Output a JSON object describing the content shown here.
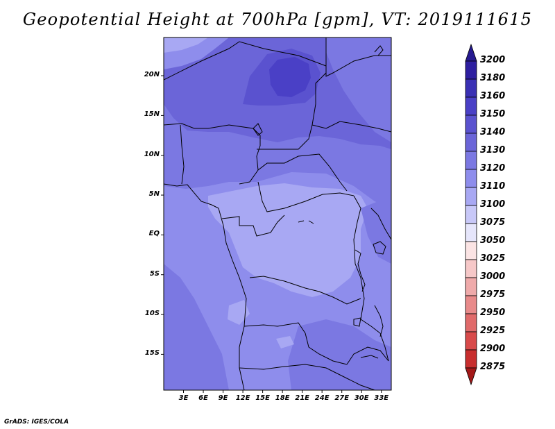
{
  "title": "Geopotential Height at 700hPa [gpm], VT: 2019111615",
  "credit": "GrADS: IGES/COLA",
  "map": {
    "lat_labels": [
      "20N",
      "15N",
      "10N",
      "5N",
      "EQ",
      "5S",
      "10S",
      "15S"
    ],
    "lon_labels": [
      "3E",
      "6E",
      "9E",
      "12E",
      "15E",
      "18E",
      "21E",
      "24E",
      "27E",
      "30E",
      "33E"
    ],
    "lat_values": [
      20,
      15,
      10,
      5,
      0,
      -5,
      -10,
      -15
    ],
    "lon_values": [
      3,
      6,
      9,
      12,
      15,
      18,
      21,
      24,
      27,
      30,
      33
    ],
    "extent": {
      "lon_min": 0,
      "lon_max": 34.5,
      "lat_min": -19.5,
      "lat_max": 24.8
    }
  },
  "colorbar": {
    "levels": [
      "3200",
      "3180",
      "3160",
      "3150",
      "3140",
      "3130",
      "3120",
      "3110",
      "3100",
      "3075",
      "3050",
      "3025",
      "3000",
      "2975",
      "2950",
      "2925",
      "2900",
      "2875"
    ],
    "colors": [
      "#2e1fa0",
      "#3a30b4",
      "#4a40c6",
      "#5a52cf",
      "#6b65d8",
      "#7b78e2",
      "#8e8dec",
      "#a8a8f3",
      "#c8c8f8",
      "#e6e6fb",
      "#fbe4e4",
      "#f6c8c8",
      "#efaaaa",
      "#e88a8a",
      "#e06a6a",
      "#d84a4a",
      "#c82e2e",
      "#b01c1c"
    ],
    "top_color": "#261a90",
    "bottom_color": "#a31818"
  }
}
